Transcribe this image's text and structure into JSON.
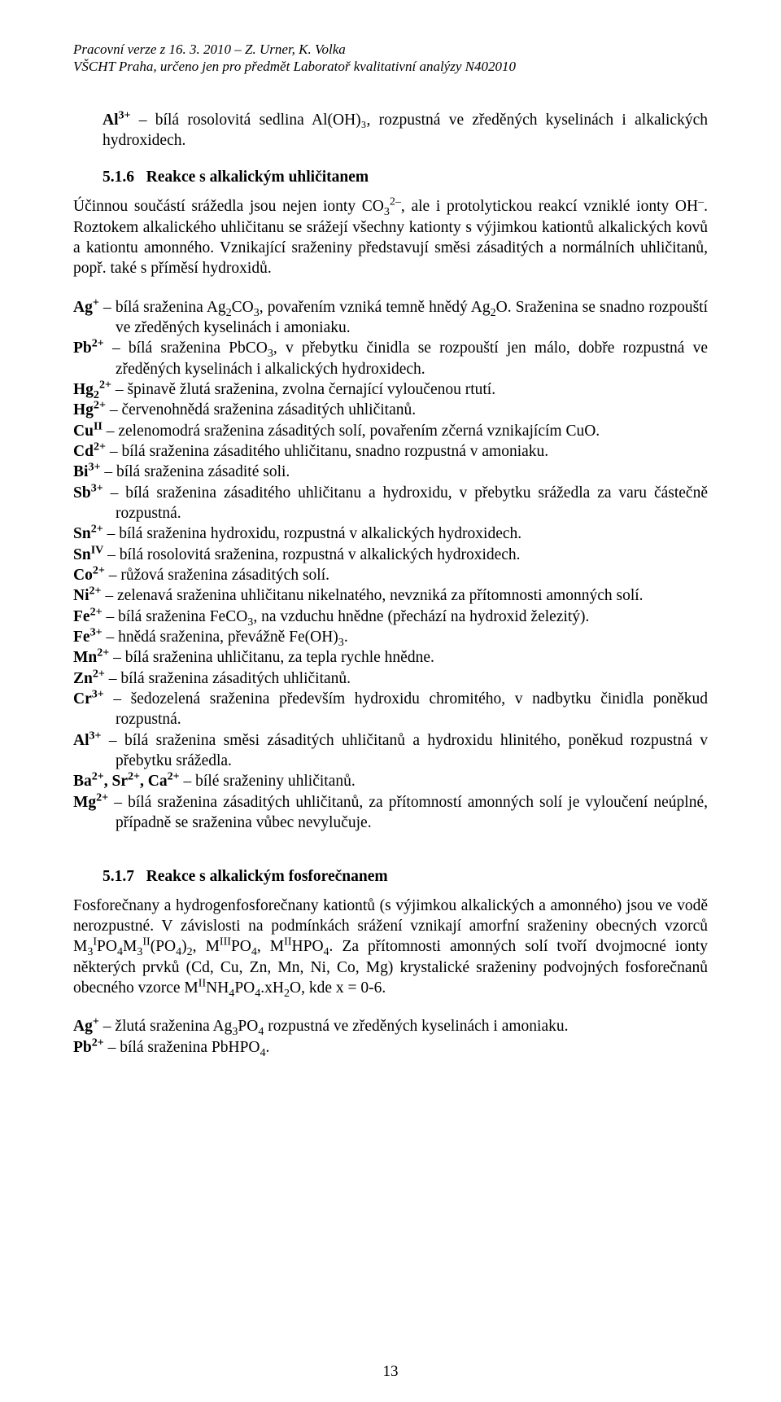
{
  "header": {
    "line1": "Pracovní verze z 16. 3. 2010 – Z. Urner, K. Volka",
    "line2": "VŠCHT Praha, určeno jen pro předmět Laboratoř kvalitativní analýzy N402010"
  },
  "intro": {
    "text": " – bílá rosolovitá sedlina Al(OH)₃, rozpustná ve zředěných kyselinách i alkalických hydroxidech.",
    "ion_html": "Al<sup>3+</sup>"
  },
  "section516": {
    "number": "5.1.6",
    "title": "Reakce s alkalickým uhličitanem",
    "para_html": "Účinnou součástí srážedla jsou nejen ionty CO<sub>3</sub><sup>2–</sup>, ale i protolytickou reakcí vzniklé ionty OH<sup>–</sup>. Roztokem alkalického uhličitanu se srážejí všechny kationty s výjimkou kationtů alkalických kovů a kationtu amonného. Vznikající sraženiny představují směsi zásaditých a normálních uhličitanů, popř. také s příměsí hydroxidů."
  },
  "ion_entries": [
    {
      "html": "<b>Ag<sup>+</sup></b> – bílá sraženina Ag<sub>2</sub>CO<sub>3</sub>, povařením vzniká temně hnědý Ag<sub>2</sub>O. Sraženina se snadno rozpouští ve zředěných kyselinách i amoniaku."
    },
    {
      "html": "<b>Pb<sup>2+</sup></b> – bílá sraženina PbCO<sub>3</sub>, v přebytku činidla se rozpouští jen málo, dobře rozpustná ve zředěných kyselinách i alkalických hydroxidech."
    },
    {
      "html": "<b>Hg<sub>2</sub><sup>2+</sup></b> – špinavě žlutá sraženina, zvolna černající vyloučenou rtutí."
    },
    {
      "html": "<b>Hg<sup>2+</sup></b> – červenohnědá sraženina zásaditých uhličitanů."
    },
    {
      "html": "<b>Cu<sup>II</sup></b> – zelenomodrá sraženina zásaditých solí, povařením zčerná vznikajícím CuO."
    },
    {
      "html": "<b>Cd<sup>2+</sup></b> – bílá sraženina zásaditého uhličitanu, snadno rozpustná v amoniaku."
    },
    {
      "html": "<b>Bi<sup>3+</sup></b> – bílá sraženina zásadité soli."
    },
    {
      "html": "<b>Sb<sup>3+</sup></b> – bílá sraženina zásaditého uhličitanu a hydroxidu, v přebytku srážedla za varu částečně rozpustná."
    },
    {
      "html": "<b>Sn<sup>2+</sup></b> – bílá sraženina hydroxidu, rozpustná v alkalických hydroxidech."
    },
    {
      "html": "<b>Sn<sup>IV</sup></b> – bílá rosolovitá sraženina, rozpustná v alkalických hydroxidech."
    },
    {
      "html": "<b>Co<sup>2+</sup></b> – růžová sraženina zásaditých solí."
    },
    {
      "html": "<b>Ni<sup>2+</sup></b> – zelenavá sraženina uhličitanu nikelnatého, nevzniká za přítomnosti amonných solí."
    },
    {
      "html": "<b>Fe<sup>2+</sup></b> – bílá sraženina FeCO<sub>3</sub>, na vzduchu hnědne (přechází na hydroxid železitý)."
    },
    {
      "html": "<b>Fe<sup>3+</sup></b> – hnědá sraženina, převážně Fe(OH)<sub>3</sub>."
    },
    {
      "html": "<b>Mn<sup>2+</sup></b> – bílá sraženina uhličitanu, za tepla rychle hnědne."
    },
    {
      "html": "<b>Zn<sup>2+</sup></b> – bílá sraženina zásaditých uhličitanů."
    },
    {
      "html": "<b>Cr<sup>3+</sup></b> – šedozelená sraženina především hydroxidu chromitého, v nadbytku činidla poněkud rozpustná."
    },
    {
      "html": "<b>Al<sup>3+</sup></b> – bílá sraženina směsi zásaditých uhličitanů a hydroxidu hlinitého, poněkud rozpustná v přebytku srážedla."
    },
    {
      "html": "<b>Ba<sup>2+</sup>, Sr<sup>2+</sup>, Ca<sup>2+</sup></b> – bílé sraženiny uhličitanů."
    },
    {
      "html": "<b>Mg<sup>2+</sup></b> – bílá sraženina zásaditých uhličitanů, za přítomností amonných solí je vyloučení neúplné, případně se sraženina vůbec nevylučuje."
    }
  ],
  "section517": {
    "number": "5.1.7",
    "title": "Reakce s alkalickým fosforečnanem",
    "para_html": "Fosforečnany a hydrogenfosforečnany kationtů (s výjimkou alkalických a amonného) jsou ve vodě nerozpustné. V závislosti na podmínkách srážení vznikají amorfní sraženiny obecných vzorců M<sub>3</sub><sup>I</sup>PO<sub>4</sub>M<sub>3</sub><sup>II</sup>(PO<sub>4</sub>)<sub>2</sub>, M<sup>III</sup>PO<sub>4</sub>, M<sup>II</sup>HPO<sub>4</sub>. Za přítomnosti amonných solí tvoří dvojmocné ionty některých prvků (Cd, Cu, Zn, Mn, Ni, Co, Mg) krystalické sraženiny podvojných fosforečnanů obecného vzorce M<sup>II</sup>NH<sub>4</sub>PO<sub>4</sub>.xH<sub>2</sub>O, kde x = 0-6."
  },
  "ion_entries_517": [
    {
      "html": "<b>Ag<sup>+</sup></b> – žlutá sraženina Ag<sub>3</sub>PO<sub>4</sub> rozpustná ve zředěných kyselinách i amoniaku."
    },
    {
      "html": "<b>Pb<sup>2+</sup></b> – bílá sraženina PbHPO<sub>4</sub>."
    }
  ],
  "page_number": "13"
}
